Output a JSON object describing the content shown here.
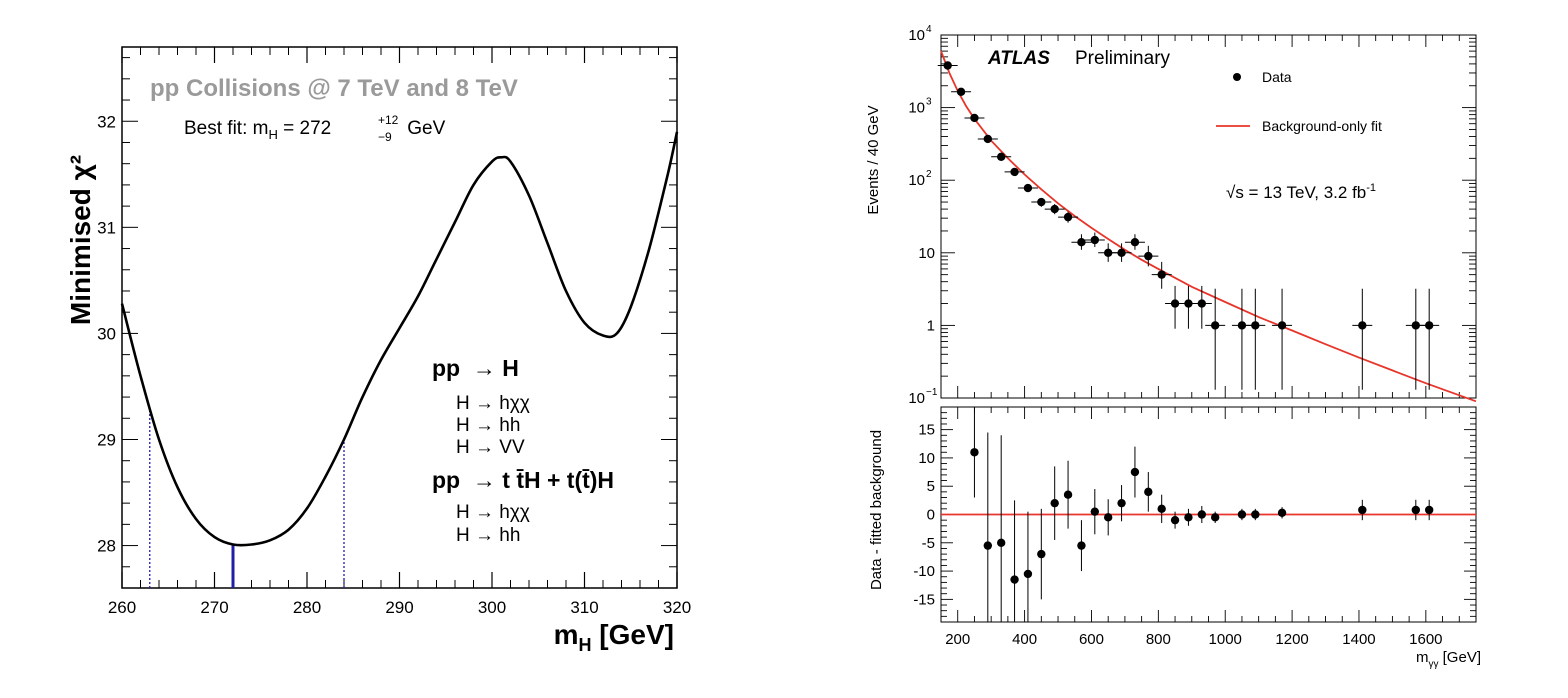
{
  "chart_data": [
    {
      "type": "line",
      "subtitle": "pp Collisions @ 7 TeV and 8 TeV",
      "best_fit": {
        "prefix": "Best fit: m",
        "sub": "H",
        "middle": " = 272 ",
        "err_up": "+12",
        "err_down": "−9",
        "suffix": " GeV"
      },
      "ylabel": "Minimised χ²",
      "xlabel": "m_H [GeV]",
      "xlabel_main": "m",
      "xlabel_sub": "H",
      "xlabel_unit": " [GeV]",
      "xlim": [
        260,
        320
      ],
      "ylim": [
        27.6,
        32.7
      ],
      "x_ticks": [
        260,
        270,
        280,
        290,
        300,
        310,
        320
      ],
      "y_ticks": [
        28,
        29,
        30,
        31,
        32
      ],
      "series": [
        {
          "x": [
            260,
            262,
            264,
            266,
            268,
            270,
            272,
            274,
            276,
            278,
            280,
            282,
            284,
            286,
            288,
            290,
            292,
            294,
            296,
            298,
            300,
            301,
            302,
            304,
            306,
            308,
            310,
            312,
            313.5,
            315,
            317,
            319,
            320
          ],
          "y": [
            30.28,
            29.6,
            29.0,
            28.55,
            28.25,
            28.08,
            28.01,
            28.01,
            28.05,
            28.15,
            28.35,
            28.65,
            29.0,
            29.4,
            29.75,
            30.05,
            30.35,
            30.7,
            31.05,
            31.4,
            31.62,
            31.66,
            31.62,
            31.3,
            30.85,
            30.4,
            30.1,
            29.98,
            30.0,
            30.25,
            30.8,
            31.5,
            31.9
          ]
        }
      ],
      "best_fit_value": 272,
      "interval": [
        263,
        284
      ],
      "legend_block": {
        "head1": "pp  → H",
        "lines1": [
          "H → hχχ",
          "H → hh",
          "H → VV"
        ],
        "head2": "pp  → t t̄H + t(t̄)H",
        "lines2": [
          "H → hχχ",
          "H → hh"
        ]
      }
    },
    {
      "type": "scatter",
      "experiment": "ATLAS",
      "status": "Preliminary",
      "energy_prefix": "√s = 13 TeV, 3.2 fb",
      "energy_sup": "-1",
      "legend": [
        {
          "name": "Data",
          "marker": "point",
          "color": "#000000"
        },
        {
          "name": "Background-only fit",
          "marker": "line",
          "color": "#e8352b"
        }
      ],
      "ylabel": "Events / 40 GeV",
      "xlim": [
        150,
        1750
      ],
      "ylim_log": [
        0.1,
        10000
      ],
      "y_ticks_log": [
        {
          "v": 0.1,
          "base": "10",
          "exp": "−1"
        },
        {
          "v": 1,
          "base": "1",
          "exp": ""
        },
        {
          "v": 10,
          "base": "10",
          "exp": ""
        },
        {
          "v": 100,
          "base": "10",
          "exp": "2"
        },
        {
          "v": 1000,
          "base": "10",
          "exp": "3"
        },
        {
          "v": 10000,
          "base": "10",
          "exp": "4"
        }
      ],
      "points": [
        {
          "x": 170,
          "y": 3800,
          "lo": 3500,
          "hi": 4100
        },
        {
          "x": 210,
          "y": 1650,
          "lo": 1550,
          "hi": 1750
        },
        {
          "x": 250,
          "y": 720,
          "lo": 680,
          "hi": 770
        },
        {
          "x": 290,
          "y": 370,
          "lo": 340,
          "hi": 400
        },
        {
          "x": 330,
          "y": 210,
          "lo": 195,
          "hi": 225
        },
        {
          "x": 370,
          "y": 130,
          "lo": 118,
          "hi": 142
        },
        {
          "x": 410,
          "y": 78,
          "lo": 70,
          "hi": 87
        },
        {
          "x": 450,
          "y": 50,
          "lo": 43,
          "hi": 57
        },
        {
          "x": 490,
          "y": 40,
          "lo": 34,
          "hi": 47
        },
        {
          "x": 530,
          "y": 31,
          "lo": 26,
          "hi": 37
        },
        {
          "x": 570,
          "y": 14,
          "lo": 11,
          "hi": 18
        },
        {
          "x": 610,
          "y": 15,
          "lo": 12,
          "hi": 19
        },
        {
          "x": 650,
          "y": 10,
          "lo": 7.5,
          "hi": 13.5
        },
        {
          "x": 690,
          "y": 10,
          "lo": 7.5,
          "hi": 13.5
        },
        {
          "x": 730,
          "y": 14,
          "lo": 11,
          "hi": 18
        },
        {
          "x": 770,
          "y": 9,
          "lo": 6.5,
          "hi": 12.5
        },
        {
          "x": 810,
          "y": 5,
          "lo": 3.2,
          "hi": 7.5
        },
        {
          "x": 850,
          "y": 2,
          "lo": 0.9,
          "hi": 3.5
        },
        {
          "x": 890,
          "y": 2,
          "lo": 0.9,
          "hi": 3.5
        },
        {
          "x": 930,
          "y": 2,
          "lo": 0.9,
          "hi": 3.5
        },
        {
          "x": 970,
          "y": 1,
          "lo": 0.13,
          "hi": 3.2
        },
        {
          "x": 1050,
          "y": 1,
          "lo": 0.13,
          "hi": 3.2
        },
        {
          "x": 1090,
          "y": 1,
          "lo": 0.13,
          "hi": 3.2
        },
        {
          "x": 1170,
          "y": 1,
          "lo": 0.13,
          "hi": 3.2
        },
        {
          "x": 1410,
          "y": 1,
          "lo": 0.13,
          "hi": 3.2
        },
        {
          "x": 1570,
          "y": 1,
          "lo": 0.13,
          "hi": 3.2
        },
        {
          "x": 1610,
          "y": 1,
          "lo": 0.13,
          "hi": 3.2
        }
      ],
      "fit_curve": {
        "x": [
          150,
          175,
          200,
          225,
          250,
          300,
          350,
          400,
          450,
          500,
          550,
          600,
          650,
          700,
          750,
          800,
          900,
          1000,
          1100,
          1200,
          1300,
          1400,
          1500,
          1600,
          1750
        ],
        "y": [
          6000,
          3000,
          1700,
          1050,
          700,
          350,
          200,
          120,
          75,
          48,
          32,
          22,
          15.5,
          11,
          8,
          6,
          3.4,
          2.1,
          1.3,
          0.85,
          0.55,
          0.36,
          0.24,
          0.16,
          0.09
        ]
      },
      "ratio": {
        "ylabel": "Data - fitted background",
        "xlabel": "m_γγ [GeV]",
        "xlabel_main": "m",
        "xlabel_sub": "γγ",
        "xlabel_unit": " [GeV]",
        "ylim": [
          -19,
          19
        ],
        "y_ticks": [
          -15,
          -10,
          -5,
          0,
          5,
          10,
          15
        ],
        "x_ticks": [
          200,
          400,
          600,
          800,
          1000,
          1200,
          1400,
          1600
        ],
        "points": [
          {
            "x": 250,
            "y": 11,
            "err": 8
          },
          {
            "x": 290,
            "y": -5.5,
            "err": 20
          },
          {
            "x": 330,
            "y": -5,
            "err": 19
          },
          {
            "x": 370,
            "y": -11.5,
            "err": 14
          },
          {
            "x": 410,
            "y": -10.5,
            "err": 11
          },
          {
            "x": 450,
            "y": -7,
            "err": 8
          },
          {
            "x": 490,
            "y": 2,
            "err": 6.5
          },
          {
            "x": 530,
            "y": 3.5,
            "err": 6
          },
          {
            "x": 570,
            "y": -5.5,
            "err": 4.5
          },
          {
            "x": 610,
            "y": 0.5,
            "err": 4
          },
          {
            "x": 650,
            "y": -0.5,
            "err": 3.2
          },
          {
            "x": 690,
            "y": 2,
            "err": 3.2
          },
          {
            "x": 730,
            "y": 7.5,
            "err": 4.5
          },
          {
            "x": 770,
            "y": 4,
            "err": 3.5
          },
          {
            "x": 810,
            "y": 1,
            "err": 2.5
          },
          {
            "x": 850,
            "y": -1,
            "err": 1.5
          },
          {
            "x": 890,
            "y": -0.5,
            "err": 1.5
          },
          {
            "x": 930,
            "y": 0,
            "err": 1.5
          },
          {
            "x": 970,
            "y": -0.5,
            "err": 1
          },
          {
            "x": 1050,
            "y": 0,
            "err": 1
          },
          {
            "x": 1090,
            "y": 0,
            "err": 1
          },
          {
            "x": 1170,
            "y": 0.3,
            "err": 1
          },
          {
            "x": 1410,
            "y": 0.8,
            "err": 1.8
          },
          {
            "x": 1570,
            "y": 0.8,
            "err": 1.8
          },
          {
            "x": 1610,
            "y": 0.8,
            "err": 1.8
          }
        ]
      }
    }
  ],
  "colors": {
    "curve": "#000000",
    "best_fit_line": "#1f1fa8",
    "fit": "#e8352b",
    "subtitle": "#9a9a9a"
  }
}
